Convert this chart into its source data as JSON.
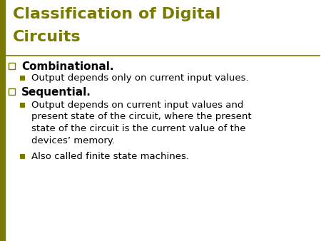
{
  "title_line1": "Classification of Digital",
  "title_line2": "Circuits",
  "title_color": "#7a7a00",
  "title_fontsize": 16,
  "bg_color": "#ffffff",
  "separator_color": "#7a7a00",
  "left_bar_color": "#7a7a00",
  "bullet_square_color": "#7a7a00",
  "bullet_filled_color": "#7a7a00",
  "body_text_color": "#000000",
  "bold_text_color": "#000000",
  "items": [
    {
      "type": "heading",
      "text": "Combinational."
    },
    {
      "type": "bullet",
      "text": "Output depends only on current input values."
    },
    {
      "type": "heading",
      "text": "Sequential."
    },
    {
      "type": "bullet",
      "text": "Output depends on current input values and\npresent state of the circuit, where the present\nstate of the circuit is the current value of the\ndevices’ memory."
    },
    {
      "type": "bullet",
      "text": "Also called finite state machines."
    }
  ],
  "heading_fontsize": 11,
  "bullet_fontsize": 9.5,
  "figsize": [
    4.5,
    3.38
  ],
  "dpi": 100
}
